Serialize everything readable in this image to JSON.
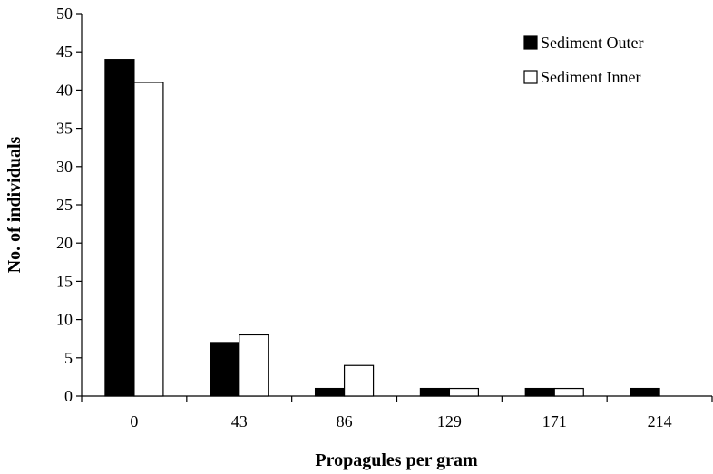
{
  "chart_data": {
    "type": "bar",
    "categories": [
      "0",
      "43",
      "86",
      "129",
      "171",
      "214"
    ],
    "series": [
      {
        "name": "Sediment Outer",
        "values": [
          44,
          7,
          1,
          1,
          1,
          1
        ],
        "fill": "#000000"
      },
      {
        "name": "Sediment Inner",
        "values": [
          41,
          8,
          4,
          1,
          1,
          0
        ],
        "fill": "#ffffff"
      }
    ],
    "xlabel": "Propagules per gram",
    "ylabel": "No. of individuals",
    "ylim": [
      0,
      50
    ],
    "yticks": [
      0,
      5,
      10,
      15,
      20,
      25,
      30,
      35,
      40,
      45,
      50
    ],
    "grid": false,
    "legend_position": "top-right"
  }
}
